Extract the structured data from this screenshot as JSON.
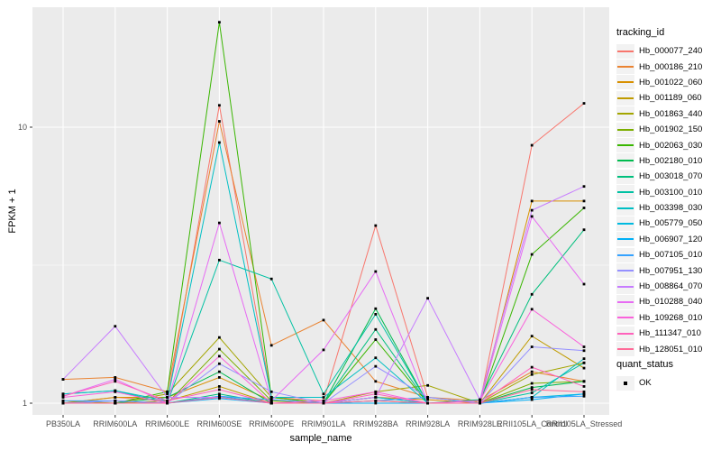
{
  "panel": {
    "bg": "#EBEBEB",
    "grid_major": "#FFFFFF",
    "grid_minor": "#FFFFFF",
    "tick_color": "#333333",
    "tick_label_color": "#4D4D4D",
    "key_bg": "#F2F2F2",
    "point_color": "#000000"
  },
  "chart_data": {
    "type": "line",
    "title": "",
    "xlabel": "sample_name",
    "ylabel": "FPKM + 1",
    "y_scale": "log10",
    "ylim": [
      0.93,
      27
    ],
    "y_ticks": [
      1,
      10
    ],
    "y_tick_labels": [
      "1",
      "10"
    ],
    "y_minor_breaks": [
      3.162
    ],
    "grid": true,
    "legend_position": "right",
    "legend_title": "tracking_id",
    "legend2_title": "quant_status",
    "legend2_items": [
      {
        "label": "OK",
        "shape": "square",
        "color": "#000000"
      }
    ],
    "categories": [
      "PB350LA",
      "RRIM600LA",
      "RRIM600LE",
      "RRIM600SE",
      "RRIM600PE",
      "RRIM901LA",
      "RRIM928BA",
      "RRIM928LA",
      "RRIM928LE",
      "RRII105LA_Control",
      "RRII105LA_Stressed"
    ],
    "series": [
      {
        "name": "Hb_000077_240",
        "color": "#F8766D",
        "values": [
          1.0,
          1.05,
          1.02,
          12.0,
          1.05,
          1.02,
          4.4,
          1.05,
          1.0,
          8.6,
          12.2
        ]
      },
      {
        "name": "Hb_000186_210",
        "color": "#EA8331",
        "values": [
          1.22,
          1.24,
          1.1,
          10.5,
          1.62,
          2.0,
          1.2,
          1.05,
          1.02,
          1.3,
          1.2
        ]
      },
      {
        "name": "Hb_001022_060",
        "color": "#D89000",
        "values": [
          1.0,
          1.05,
          1.05,
          1.24,
          1.02,
          1.0,
          1.05,
          1.03,
          1.0,
          5.4,
          5.4
        ]
      },
      {
        "name": "Hb_001189_060",
        "color": "#C09B00",
        "values": [
          1.0,
          1.0,
          1.02,
          1.15,
          1.0,
          1.0,
          1.02,
          1.0,
          1.0,
          1.75,
          1.34
        ]
      },
      {
        "name": "Hb_001863_440",
        "color": "#A3A500",
        "values": [
          1.02,
          1.0,
          1.08,
          1.73,
          1.05,
          1.0,
          1.1,
          1.16,
          1.0,
          1.27,
          1.4
        ]
      },
      {
        "name": "Hb_001902_150",
        "color": "#7CAE00",
        "values": [
          1.0,
          1.02,
          1.0,
          1.57,
          1.02,
          1.0,
          1.05,
          1.0,
          1.0,
          1.18,
          1.2
        ]
      },
      {
        "name": "Hb_002063_030",
        "color": "#39B600",
        "values": [
          1.0,
          1.0,
          1.1,
          24.0,
          1.05,
          1.0,
          1.7,
          1.0,
          1.0,
          3.46,
          5.1
        ]
      },
      {
        "name": "Hb_002180_010",
        "color": "#00BB4E",
        "values": [
          1.0,
          1.0,
          1.05,
          1.3,
          1.0,
          1.0,
          2.2,
          1.0,
          1.0,
          1.14,
          1.2
        ]
      },
      {
        "name": "Hb_003018_070",
        "color": "#00BF7D",
        "values": [
          1.0,
          1.0,
          1.0,
          1.08,
          1.0,
          1.0,
          1.85,
          1.0,
          1.03,
          2.48,
          4.25
        ]
      },
      {
        "name": "Hb_003100_010",
        "color": "#00C1A3",
        "values": [
          1.08,
          1.11,
          1.0,
          3.3,
          2.82,
          1.08,
          2.1,
          1.0,
          1.0,
          1.09,
          1.4
        ]
      },
      {
        "name": "Hb_003398_030",
        "color": "#00BFC4",
        "values": [
          1.08,
          1.11,
          1.02,
          8.8,
          1.05,
          1.05,
          1.46,
          1.0,
          1.0,
          1.05,
          1.45
        ]
      },
      {
        "name": "Hb_005779_050",
        "color": "#00BAE0",
        "values": [
          1.0,
          1.0,
          1.0,
          1.06,
          1.0,
          1.0,
          1.05,
          1.0,
          1.0,
          1.05,
          1.08
        ]
      },
      {
        "name": "Hb_006907_120",
        "color": "#00B0F6",
        "values": [
          1.0,
          1.02,
          1.0,
          1.04,
          1.0,
          1.0,
          1.0,
          1.0,
          1.0,
          1.03,
          1.08
        ]
      },
      {
        "name": "Hb_007105_010",
        "color": "#35A2FF",
        "values": [
          1.02,
          1.02,
          1.0,
          1.06,
          1.03,
          1.0,
          1.02,
          1.05,
          1.0,
          1.05,
          1.06
        ]
      },
      {
        "name": "Hb_007951_130",
        "color": "#9590FF",
        "values": [
          1.0,
          1.02,
          1.0,
          1.39,
          1.1,
          1.0,
          1.36,
          1.05,
          1.0,
          1.6,
          1.55
        ]
      },
      {
        "name": "Hb_008864_070",
        "color": "#C77CFF",
        "values": [
          1.22,
          1.9,
          1.05,
          1.05,
          1.0,
          1.0,
          1.05,
          2.4,
          1.03,
          5.0,
          6.1
        ]
      },
      {
        "name": "Hb_010288_040",
        "color": "#E76BF3",
        "values": [
          1.06,
          1.22,
          1.0,
          4.5,
          1.02,
          1.56,
          3.0,
          1.0,
          1.0,
          4.75,
          2.7
        ]
      },
      {
        "name": "Hb_109268_010",
        "color": "#FA62DB",
        "values": [
          1.05,
          1.1,
          1.0,
          1.48,
          1.0,
          1.02,
          1.1,
          1.0,
          1.02,
          2.19,
          1.6
        ]
      },
      {
        "name": "Hb_111347_010",
        "color": "#FF62BC",
        "values": [
          1.06,
          1.2,
          1.02,
          1.12,
          1.0,
          1.0,
          1.08,
          1.0,
          1.0,
          1.35,
          1.15
        ]
      },
      {
        "name": "Hb_128051_010",
        "color": "#FF6A98",
        "values": [
          1.0,
          1.0,
          1.0,
          1.05,
          1.0,
          1.0,
          1.02,
          1.0,
          1.0,
          1.12,
          1.1
        ]
      }
    ]
  }
}
